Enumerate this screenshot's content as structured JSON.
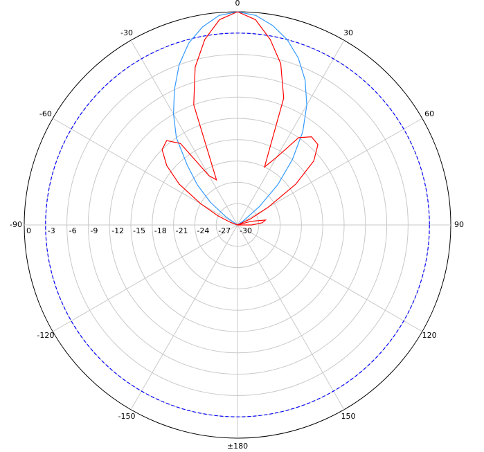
{
  "chart_data": {
    "type": "polar",
    "x": [
      -180,
      -150,
      -120,
      -90,
      -85,
      -80,
      -75,
      -70,
      -65,
      -60,
      -55,
      -50,
      -45,
      -40,
      -35,
      -30,
      -25,
      -20,
      -15,
      -10,
      -5,
      0,
      5,
      10,
      15,
      20,
      25,
      30,
      35,
      40,
      45,
      50,
      55,
      60,
      65,
      70,
      75,
      80,
      85,
      90,
      120,
      150,
      180
    ],
    "series": [
      {
        "color": "#3399ff",
        "values": [
          -30,
          -30,
          -30,
          -30,
          -30,
          -30,
          -30,
          -30,
          -30,
          -30,
          -28,
          -25,
          -22,
          -19,
          -15,
          -12,
          -9,
          -6,
          -3.5,
          -1.7,
          -0.4,
          0,
          -0.4,
          -1.5,
          -3,
          -5,
          -7.5,
          -10.5,
          -14,
          -18,
          -22,
          -26,
          -29,
          -30,
          -30,
          -30,
          -30,
          -30,
          -30,
          -30,
          -30,
          -30,
          -30
        ]
      },
      {
        "color": "#ff0000",
        "values": [
          -30,
          -30,
          -30,
          -30,
          -30,
          -30,
          -30,
          -29,
          -27,
          -24,
          -20,
          -17,
          -15,
          -14.5,
          -16,
          -22,
          -23,
          -12,
          -7,
          -3.5,
          -1,
          0,
          -1,
          -3.5,
          -6.5,
          -11,
          -21,
          -19,
          -15,
          -13.8,
          -14,
          -16,
          -20,
          -25,
          -28,
          -30,
          -28,
          -26,
          -26.5,
          -28,
          -30,
          -30,
          -30
        ]
      }
    ],
    "reference": -3,
    "reference_color": "#0000ff",
    "rlim": [
      -30,
      0
    ],
    "rticks": [
      0,
      -3,
      -6,
      -9,
      -12,
      -15,
      -18,
      -21,
      -24,
      -27,
      -30
    ],
    "xticks": [
      -150,
      -120,
      -90,
      -60,
      -30,
      0,
      30,
      60,
      90,
      120,
      150,
      {
        "value": 180,
        "label": "±180"
      }
    ]
  }
}
